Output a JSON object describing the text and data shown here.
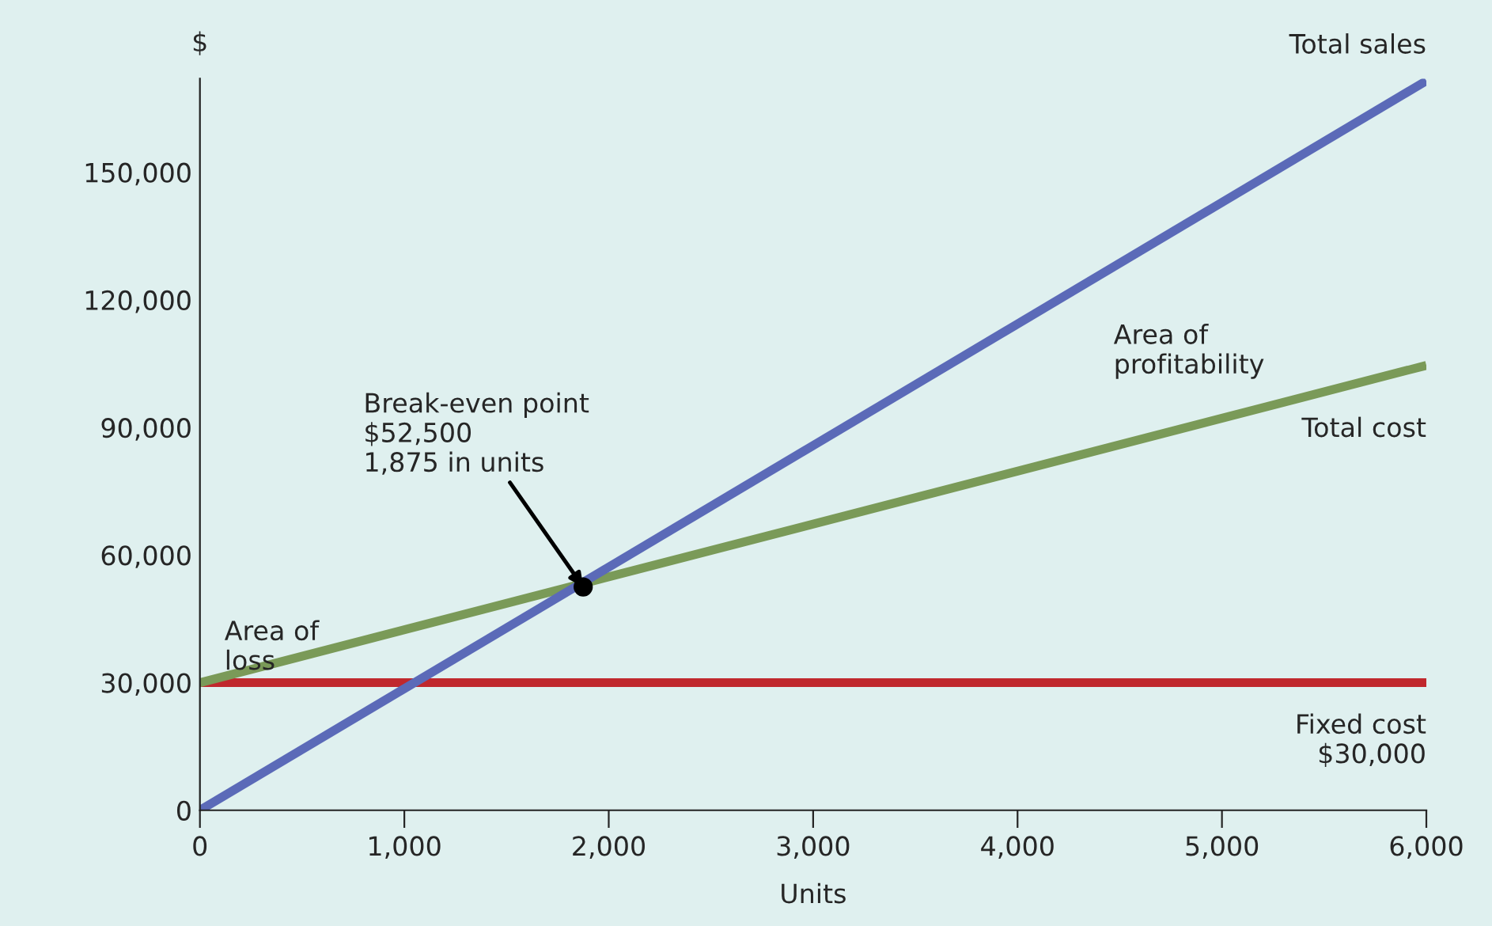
{
  "chart_data": {
    "type": "line",
    "xlabel": "Units",
    "ylabel": "$",
    "xlim": [
      0,
      6000
    ],
    "xticks": [
      {
        "value": 0,
        "label": "0"
      },
      {
        "value": 1000,
        "label": "1,000"
      },
      {
        "value": 2000,
        "label": "2,000"
      },
      {
        "value": 3000,
        "label": "3,000"
      },
      {
        "value": 4000,
        "label": "4,000"
      },
      {
        "value": 5000,
        "label": "5,000"
      },
      {
        "value": 6000,
        "label": "6,000"
      }
    ],
    "ylim": [
      0,
      172000
    ],
    "yticks": [
      {
        "value": 0,
        "label": "0"
      },
      {
        "value": 30000,
        "label": "30,000"
      },
      {
        "value": 60000,
        "label": "60,000"
      },
      {
        "value": 90000,
        "label": "90,000"
      },
      {
        "value": 120000,
        "label": "120,000"
      },
      {
        "value": 150000,
        "label": "150,000"
      }
    ],
    "grid": false,
    "legend": false,
    "series": [
      {
        "name": "Fixed cost\n$30,000",
        "color": "#c0282d",
        "x": [
          0,
          6000
        ],
        "values": [
          30000,
          30000
        ]
      },
      {
        "name": "Total cost",
        "color": "#7a9a58",
        "x": [
          0,
          6000
        ],
        "values": [
          30000,
          104600
        ]
      },
      {
        "name": "Total sales",
        "color": "#5b6ab8",
        "x": [
          0,
          6000
        ],
        "values": [
          0,
          171500
        ]
      },
      {
        "type": "scatter",
        "color": "#000000",
        "x": [
          1875
        ],
        "values": [
          52500
        ]
      }
    ],
    "annotations": [
      {
        "text": "Break-even point\n$52,500\n1,875 in units",
        "x": 1875,
        "y": 52500
      },
      "Area of\nprofitability",
      "Area of\nloss"
    ]
  }
}
